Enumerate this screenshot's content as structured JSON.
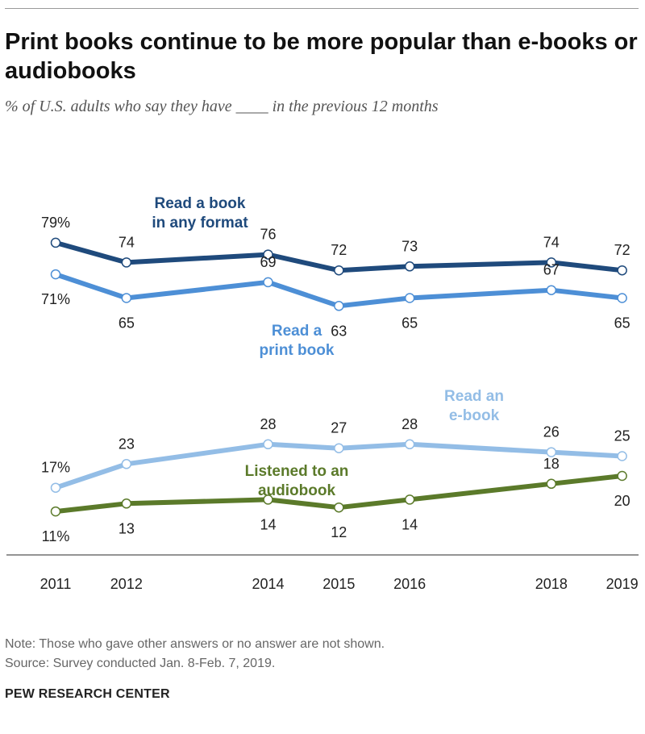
{
  "title": "Print books continue to be more popular than e-books or audiobooks",
  "subtitle": "% of U.S. adults who say they have ____ in the previous 12 months",
  "note": "Note: Those who gave other answers or no answer are not shown.",
  "source": "Source: Survey conducted Jan. 8-Feb. 7, 2019.",
  "brand": "PEW RESEARCH CENTER",
  "chart_data": {
    "type": "line",
    "x": [
      2011,
      2012,
      2014,
      2015,
      2016,
      2018,
      2019
    ],
    "x_tick_labels": [
      "2011",
      "2012",
      "2014",
      "2015",
      "2016",
      "2018",
      "2019"
    ],
    "ylim": [
      0,
      100
    ],
    "grid": false,
    "series": [
      {
        "name": "Read a book in any format",
        "label_lines": [
          "Read a book",
          "in any format"
        ],
        "color": "#1f4a7c",
        "values": [
          79,
          74,
          76,
          72,
          73,
          74,
          72
        ],
        "data_labels": [
          "79%",
          "74",
          "76",
          "72",
          "73",
          "74",
          "72"
        ]
      },
      {
        "name": "Read a print book",
        "label_lines": [
          "Read a",
          "print book"
        ],
        "color": "#4d8fd6",
        "values": [
          71,
          65,
          69,
          63,
          65,
          67,
          65
        ],
        "data_labels": [
          "71%",
          "65",
          "69",
          "63",
          "65",
          "67",
          "65"
        ]
      },
      {
        "name": "Read an e-book",
        "label_lines": [
          "Read an",
          "e-book"
        ],
        "color": "#93bde6",
        "values": [
          17,
          23,
          28,
          27,
          28,
          26,
          25
        ],
        "data_labels": [
          "17%",
          "23",
          "28",
          "27",
          "28",
          "26",
          "25"
        ]
      },
      {
        "name": "Listened to an audiobook",
        "label_lines": [
          "Listened to an",
          "audiobook"
        ],
        "color": "#5b7a2a",
        "values": [
          11,
          13,
          14,
          12,
          14,
          18,
          20
        ],
        "data_labels": [
          "11%",
          "13",
          "14",
          "12",
          "14",
          "18",
          "20"
        ]
      }
    ]
  }
}
